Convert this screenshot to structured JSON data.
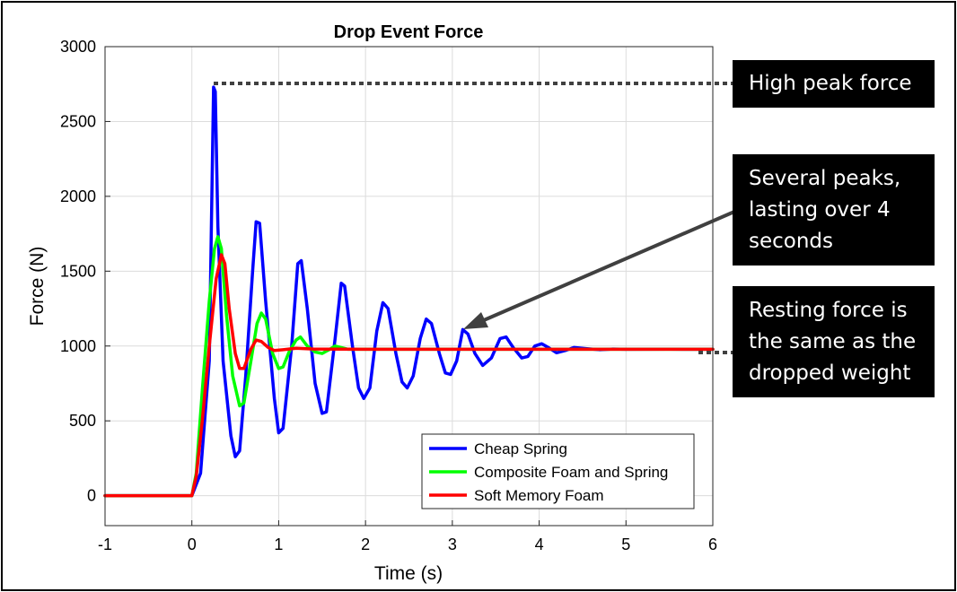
{
  "chart_data": {
    "type": "line",
    "title": "Drop Event Force",
    "xlabel": "Time (s)",
    "ylabel": "Force (N)",
    "xlim": [
      -1,
      6
    ],
    "ylim": [
      -200,
      3000
    ],
    "xticks": [
      "-1",
      "0",
      "1",
      "2",
      "3",
      "4",
      "5",
      "6"
    ],
    "yticks": [
      "0",
      "500",
      "1000",
      "1500",
      "2000",
      "2500",
      "3000"
    ],
    "grid": true,
    "legend_position": "bottom-right",
    "series": [
      {
        "name": "Cheap Spring",
        "color": "#0000ff",
        "points": [
          [
            -1,
            0
          ],
          [
            0,
            0
          ],
          [
            0.1,
            150
          ],
          [
            0.2,
            900
          ],
          [
            0.25,
            2730
          ],
          [
            0.27,
            2700
          ],
          [
            0.3,
            1800
          ],
          [
            0.36,
            900
          ],
          [
            0.45,
            400
          ],
          [
            0.5,
            260
          ],
          [
            0.55,
            300
          ],
          [
            0.62,
            800
          ],
          [
            0.7,
            1500
          ],
          [
            0.74,
            1830
          ],
          [
            0.78,
            1820
          ],
          [
            0.85,
            1300
          ],
          [
            0.95,
            650
          ],
          [
            1.0,
            420
          ],
          [
            1.05,
            450
          ],
          [
            1.15,
            1000
          ],
          [
            1.22,
            1550
          ],
          [
            1.26,
            1570
          ],
          [
            1.33,
            1250
          ],
          [
            1.42,
            750
          ],
          [
            1.5,
            550
          ],
          [
            1.55,
            560
          ],
          [
            1.65,
            1050
          ],
          [
            1.72,
            1420
          ],
          [
            1.76,
            1400
          ],
          [
            1.85,
            1000
          ],
          [
            1.92,
            720
          ],
          [
            1.98,
            650
          ],
          [
            2.05,
            720
          ],
          [
            2.13,
            1100
          ],
          [
            2.2,
            1290
          ],
          [
            2.26,
            1250
          ],
          [
            2.35,
            950
          ],
          [
            2.42,
            760
          ],
          [
            2.48,
            720
          ],
          [
            2.55,
            800
          ],
          [
            2.63,
            1050
          ],
          [
            2.7,
            1180
          ],
          [
            2.76,
            1150
          ],
          [
            2.85,
            950
          ],
          [
            2.92,
            820
          ],
          [
            2.98,
            810
          ],
          [
            3.05,
            900
          ],
          [
            3.12,
            1110
          ],
          [
            3.18,
            1080
          ],
          [
            3.26,
            950
          ],
          [
            3.35,
            870
          ],
          [
            3.45,
            920
          ],
          [
            3.55,
            1050
          ],
          [
            3.62,
            1060
          ],
          [
            3.7,
            990
          ],
          [
            3.8,
            920
          ],
          [
            3.87,
            930
          ],
          [
            3.95,
            1000
          ],
          [
            4.03,
            1015
          ],
          [
            4.12,
            985
          ],
          [
            4.2,
            955
          ],
          [
            4.3,
            970
          ],
          [
            4.4,
            990
          ],
          [
            4.55,
            982
          ],
          [
            4.7,
            975
          ],
          [
            4.85,
            980
          ],
          [
            5.0,
            978
          ],
          [
            5.5,
            979
          ],
          [
            6.0,
            978
          ]
        ]
      },
      {
        "name": "Composite Foam and Spring",
        "color": "#00ff00",
        "points": [
          [
            -1,
            0
          ],
          [
            0,
            0
          ],
          [
            0.05,
            150
          ],
          [
            0.12,
            700
          ],
          [
            0.2,
            1300
          ],
          [
            0.26,
            1650
          ],
          [
            0.3,
            1730
          ],
          [
            0.34,
            1650
          ],
          [
            0.4,
            1200
          ],
          [
            0.47,
            800
          ],
          [
            0.55,
            600
          ],
          [
            0.6,
            620
          ],
          [
            0.68,
            900
          ],
          [
            0.75,
            1150
          ],
          [
            0.8,
            1220
          ],
          [
            0.85,
            1180
          ],
          [
            0.93,
            950
          ],
          [
            1.0,
            850
          ],
          [
            1.05,
            860
          ],
          [
            1.12,
            960
          ],
          [
            1.2,
            1040
          ],
          [
            1.25,
            1060
          ],
          [
            1.33,
            1000
          ],
          [
            1.42,
            960
          ],
          [
            1.5,
            950
          ],
          [
            1.58,
            975
          ],
          [
            1.65,
            1000
          ],
          [
            1.72,
            990
          ],
          [
            1.8,
            978
          ],
          [
            2.0,
            978
          ],
          [
            6.0,
            978
          ]
        ]
      },
      {
        "name": "Soft Memory Foam",
        "color": "#ff0000",
        "points": [
          [
            -1,
            0
          ],
          [
            0,
            0
          ],
          [
            0.05,
            130
          ],
          [
            0.12,
            500
          ],
          [
            0.2,
            1000
          ],
          [
            0.28,
            1450
          ],
          [
            0.34,
            1610
          ],
          [
            0.38,
            1550
          ],
          [
            0.43,
            1250
          ],
          [
            0.5,
            950
          ],
          [
            0.55,
            850
          ],
          [
            0.6,
            850
          ],
          [
            0.68,
            980
          ],
          [
            0.74,
            1040
          ],
          [
            0.8,
            1030
          ],
          [
            0.88,
            990
          ],
          [
            0.95,
            970
          ],
          [
            1.05,
            975
          ],
          [
            1.2,
            985
          ],
          [
            1.4,
            980
          ],
          [
            2.0,
            978
          ],
          [
            6.0,
            978
          ]
        ]
      }
    ]
  },
  "callouts": {
    "peak": "High peak force",
    "several": [
      "Several peaks,",
      "lasting over 4",
      "seconds"
    ],
    "resting": [
      "Resting force is",
      "the same as the",
      "dropped weight"
    ]
  }
}
